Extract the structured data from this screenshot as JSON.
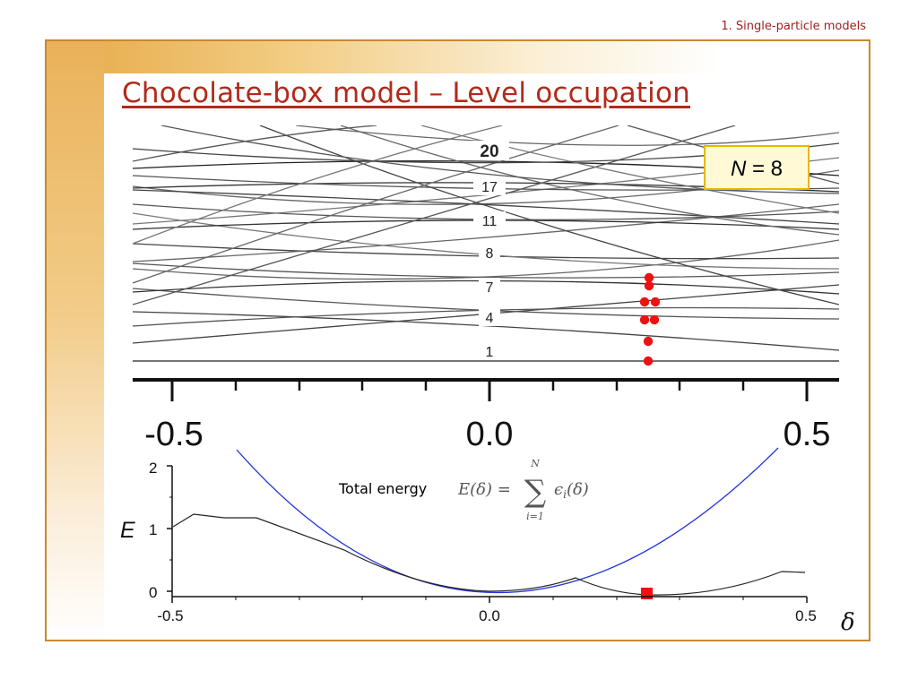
{
  "section_label": "1. Single-particle models",
  "title": "Chocolate-box model – Level occupation",
  "n_box": {
    "N": "N",
    "equals_value": " = 8"
  },
  "level_labels": [
    "20",
    "17",
    "11",
    "8",
    "7",
    "4",
    "1"
  ],
  "upper_axis": {
    "ticks": [
      "-0.5",
      "0.0",
      "0.5"
    ]
  },
  "lower_axis": {
    "x_ticks": [
      "-0.5",
      "0.0",
      "0.5"
    ],
    "y_ticks": [
      "0",
      "1",
      "2"
    ],
    "ylabel": "E",
    "xlabel": "δ"
  },
  "total_energy": {
    "text": "Total energy",
    "formula_lhs": "E(δ) =",
    "sum_symbol": "∑",
    "sum_upper": "N",
    "sum_lower": "i=1",
    "summand": "ϵ",
    "summand_sub": "i",
    "summand_arg": "(δ)"
  },
  "colors": {
    "accent": "#b22a1a",
    "frame": "#c8892b",
    "occupation_dot": "#ee1111",
    "parabola": "#2233dd",
    "nbox_border": "#e6b800",
    "nbox_fill": "#fff9d6"
  }
}
